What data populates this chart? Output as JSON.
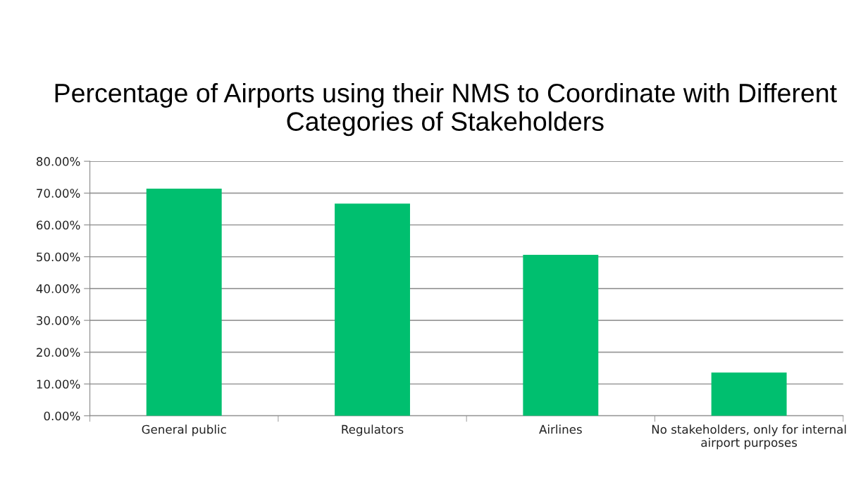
{
  "chart_data": {
    "type": "bar",
    "title": "Percentage of Airports using their NMS to Coordinate with Different Categories of Stakeholders",
    "categories": [
      "General public",
      "Regulators",
      "Airlines",
      "No stakeholders, only for internal airport purposes"
    ],
    "values": [
      71.4,
      66.7,
      50.6,
      13.6
    ],
    "color": "#00bf6f",
    "ylim": [
      0,
      80
    ],
    "yticks": [
      {
        "value": 0,
        "label": "0.00%"
      },
      {
        "value": 10,
        "label": "10.00%"
      },
      {
        "value": 20,
        "label": "20.00%"
      },
      {
        "value": 30,
        "label": "30.00%"
      },
      {
        "value": 40,
        "label": "40.00%"
      },
      {
        "value": 50,
        "label": "50.00%"
      },
      {
        "value": 60,
        "label": "60.00%"
      },
      {
        "value": 70,
        "label": "70.00%"
      },
      {
        "value": 80,
        "label": "80.00%"
      }
    ],
    "grid": "y"
  }
}
